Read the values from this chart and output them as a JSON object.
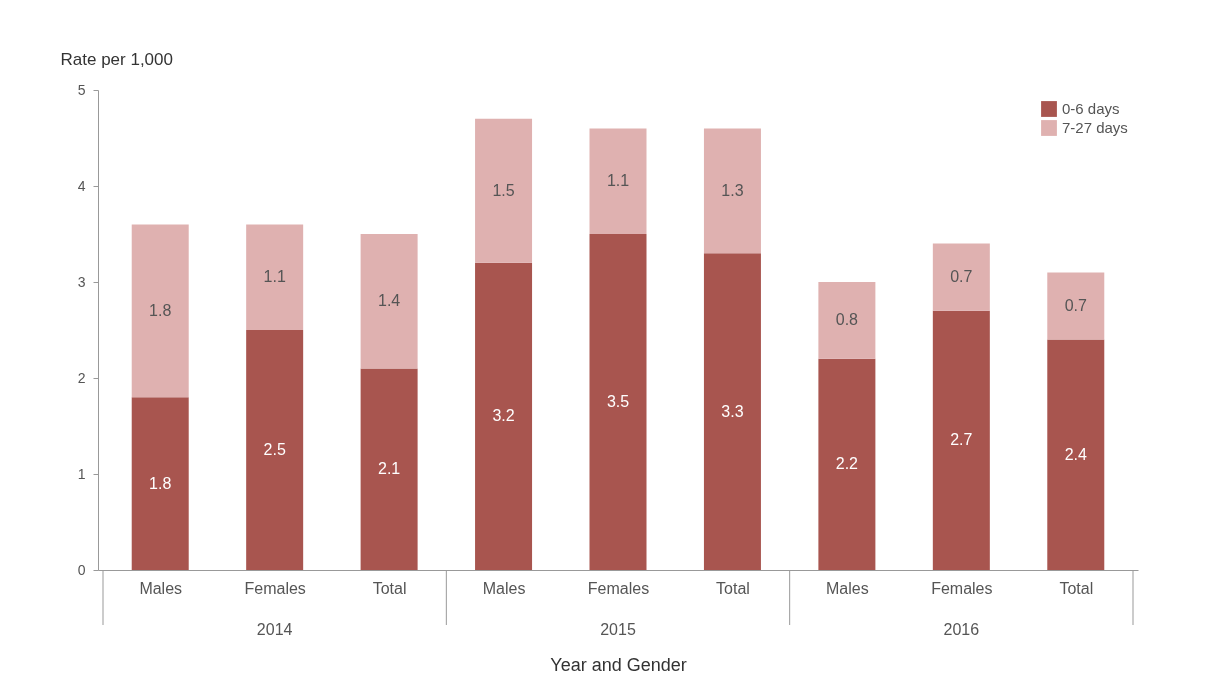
{
  "chart_data": {
    "type": "bar",
    "stacked": true,
    "xlabel": "Year and Gender",
    "ylabel": "Rate per 1,000",
    "categories": [
      "Males",
      "Females",
      "Total",
      "Males",
      "Females",
      "Total",
      "Males",
      "Females",
      "Total"
    ],
    "annotations": [
      "2014",
      "2015",
      "2016"
    ],
    "series": [
      {
        "name": "0-6 days",
        "color": "#a8554f",
        "values": [
          1.8,
          2.5,
          2.1,
          3.2,
          3.5,
          3.3,
          2.2,
          2.7,
          2.4
        ]
      },
      {
        "name": "7-27 days",
        "color": "#dfb1b0",
        "values": [
          1.8,
          1.1,
          1.4,
          1.5,
          1.1,
          1.3,
          0.8,
          0.7,
          0.7
        ]
      }
    ],
    "ylim": [
      0,
      5
    ],
    "yticks": [
      0,
      1,
      2,
      3,
      4,
      5
    ],
    "data_labels": true,
    "legend": "top right",
    "grid": false
  }
}
